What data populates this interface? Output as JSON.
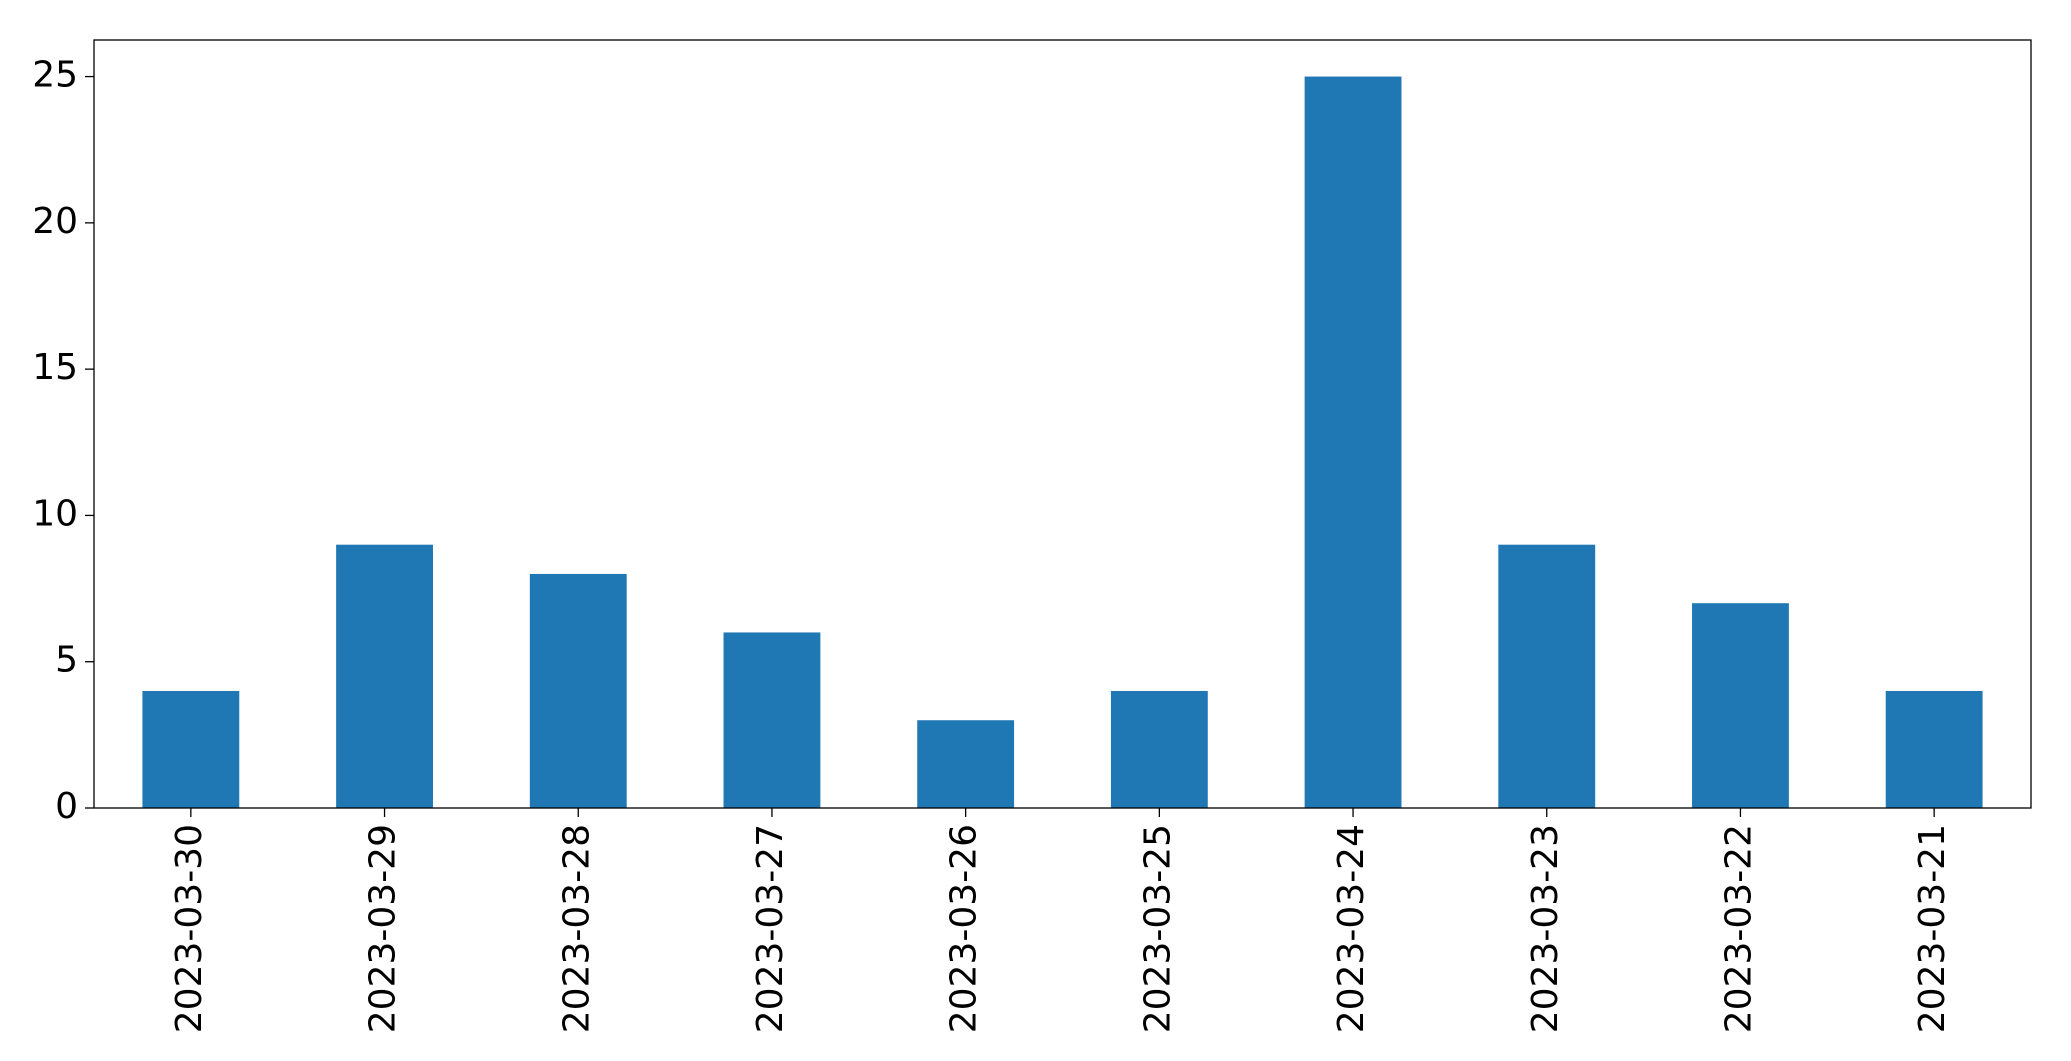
{
  "chart_data": {
    "type": "bar",
    "categories": [
      "2023-03-30",
      "2023-03-29",
      "2023-03-28",
      "2023-03-27",
      "2023-03-26",
      "2023-03-25",
      "2023-03-24",
      "2023-03-23",
      "2023-03-22",
      "2023-03-21"
    ],
    "values": [
      4,
      9,
      8,
      6,
      3,
      4,
      25,
      9,
      7,
      4
    ],
    "color": "#1f77b4",
    "ylim": [
      0,
      26.25
    ],
    "yticks": [
      0,
      5,
      10,
      15,
      20,
      25
    ],
    "grid": false
  }
}
